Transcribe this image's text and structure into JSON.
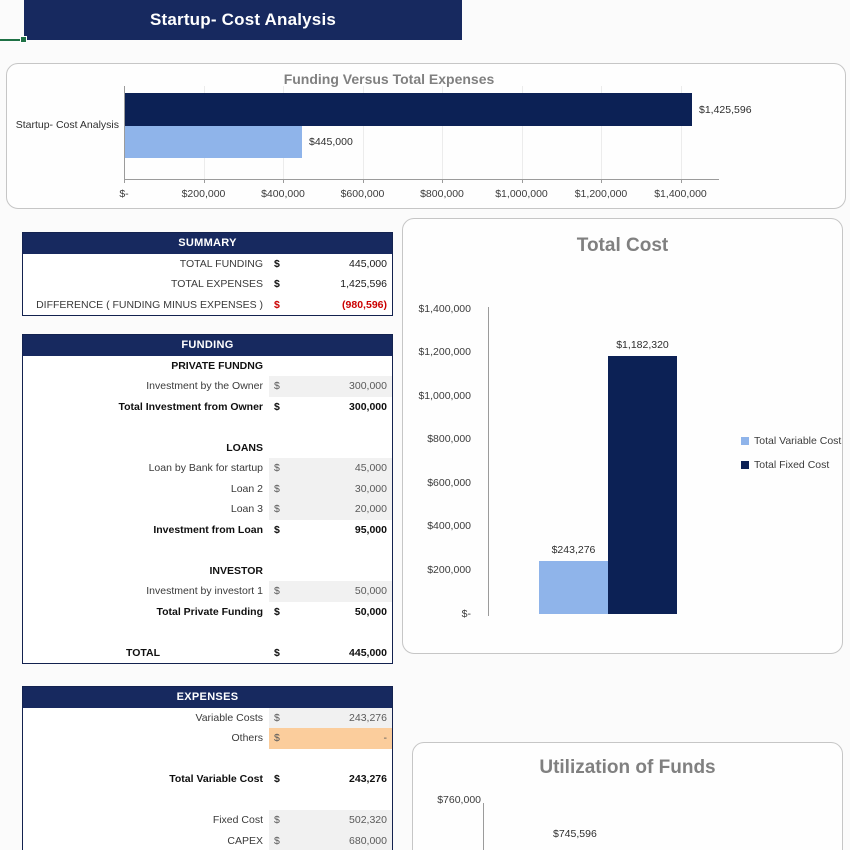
{
  "header": {
    "title": "Startup- Cost Analysis"
  },
  "colors": {
    "navy": "#17295F",
    "bar_navy": "#0C2155",
    "bar_blue": "#8FB4EA",
    "gray_cell": "#F1F1F1",
    "orange_cell": "#FBCD9C",
    "negative_red": "#CB0000",
    "selection_green": "#1E7145",
    "chart_title_gray": "#808080"
  },
  "chart_data": [
    {
      "id": "funding_vs_expenses",
      "type": "bar",
      "orientation": "horizontal",
      "title": "Funding Versus Total Expenses",
      "categories": [
        "Startup- Cost Analysis"
      ],
      "series": [
        {
          "color": "#0C2155",
          "values": [
            1425596
          ],
          "label": "$1,425,596"
        },
        {
          "color": "#8FB4EA",
          "values": [
            445000
          ],
          "label": "$445,000"
        }
      ],
      "x_ticks": [
        "$-",
        "$200,000",
        "$400,000",
        "$600,000",
        "$800,000",
        "$1,000,000",
        "$1,200,000",
        "$1,400,000"
      ],
      "xlim": [
        0,
        1500000
      ],
      "grid": true,
      "legend_position": "none"
    },
    {
      "id": "total_cost",
      "type": "bar",
      "orientation": "vertical",
      "title": "Total Cost",
      "categories": [
        ""
      ],
      "series": [
        {
          "name": "Total Variable Cost",
          "color": "#8FB4EA",
          "values": [
            243276
          ],
          "label": "$243,276"
        },
        {
          "name": "Total Fixed Cost",
          "color": "#0C2155",
          "values": [
            1182320
          ],
          "label": "$1,182,320"
        }
      ],
      "y_ticks": [
        "$-",
        "$200,000",
        "$400,000",
        "$600,000",
        "$800,000",
        "$1,000,000",
        "$1,200,000",
        "$1,400,000"
      ],
      "ylim": [
        0,
        1400000
      ],
      "grid": false,
      "legend_position": "right"
    },
    {
      "id": "utilization_of_funds",
      "type": "bar",
      "orientation": "vertical",
      "title": "Utilization of Funds",
      "partially_visible": true,
      "y_ticks": [
        "$760,000"
      ],
      "visible_labels": [
        "$745,596"
      ]
    }
  ],
  "summary_table": {
    "header": "SUMMARY",
    "rows": [
      {
        "type": "plain",
        "label": "TOTAL FUNDING",
        "currency": "$",
        "value": "445,000"
      },
      {
        "type": "plain",
        "label": "TOTAL EXPENSES",
        "currency": "$",
        "value": "1,425,596"
      },
      {
        "type": "plain negative",
        "label": "DIFFERENCE ( FUNDING MINUS EXPENSES )",
        "currency": "$",
        "value": "(980,596)"
      }
    ]
  },
  "funding_table": {
    "header": "FUNDING",
    "rows": [
      {
        "type": "section",
        "label": "PRIVATE FUNDNG"
      },
      {
        "type": "input",
        "label": "Investment by the Owner",
        "currency": "$",
        "value": "300,000"
      },
      {
        "type": "total",
        "label": "Total Investment from Owner",
        "currency": "$",
        "value": "300,000"
      },
      {
        "type": "blank"
      },
      {
        "type": "section",
        "label": "LOANS"
      },
      {
        "type": "input",
        "label": "Loan by Bank for startup",
        "currency": "$",
        "value": "45,000"
      },
      {
        "type": "input",
        "label": "Loan 2",
        "currency": "$",
        "value": "30,000"
      },
      {
        "type": "input",
        "label": "Loan 3",
        "currency": "$",
        "value": "20,000"
      },
      {
        "type": "total",
        "label": "Investment from Loan",
        "currency": "$",
        "value": "95,000"
      },
      {
        "type": "blank"
      },
      {
        "type": "section",
        "label": "INVESTOR"
      },
      {
        "type": "input",
        "label": "Investment by investort 1",
        "currency": "$",
        "value": "50,000"
      },
      {
        "type": "total",
        "label": "Total Private Funding",
        "currency": "$",
        "value": "50,000"
      },
      {
        "type": "blank"
      },
      {
        "type": "grand",
        "label": "TOTAL",
        "currency": "$",
        "value": "445,000"
      }
    ]
  },
  "expenses_table": {
    "header": "EXPENSES",
    "rows": [
      {
        "type": "input",
        "label": "Variable Costs",
        "currency": "$",
        "value": "243,276"
      },
      {
        "type": "orange",
        "label": "Others",
        "currency": "$",
        "value": "-"
      },
      {
        "type": "blank"
      },
      {
        "type": "total",
        "label": "Total Variable Cost",
        "currency": "$",
        "value": "243,276"
      },
      {
        "type": "blank"
      },
      {
        "type": "input",
        "label": "Fixed Cost",
        "currency": "$",
        "value": "502,320"
      },
      {
        "type": "input",
        "label": "CAPEX",
        "currency": "$",
        "value": "680,000"
      }
    ]
  }
}
